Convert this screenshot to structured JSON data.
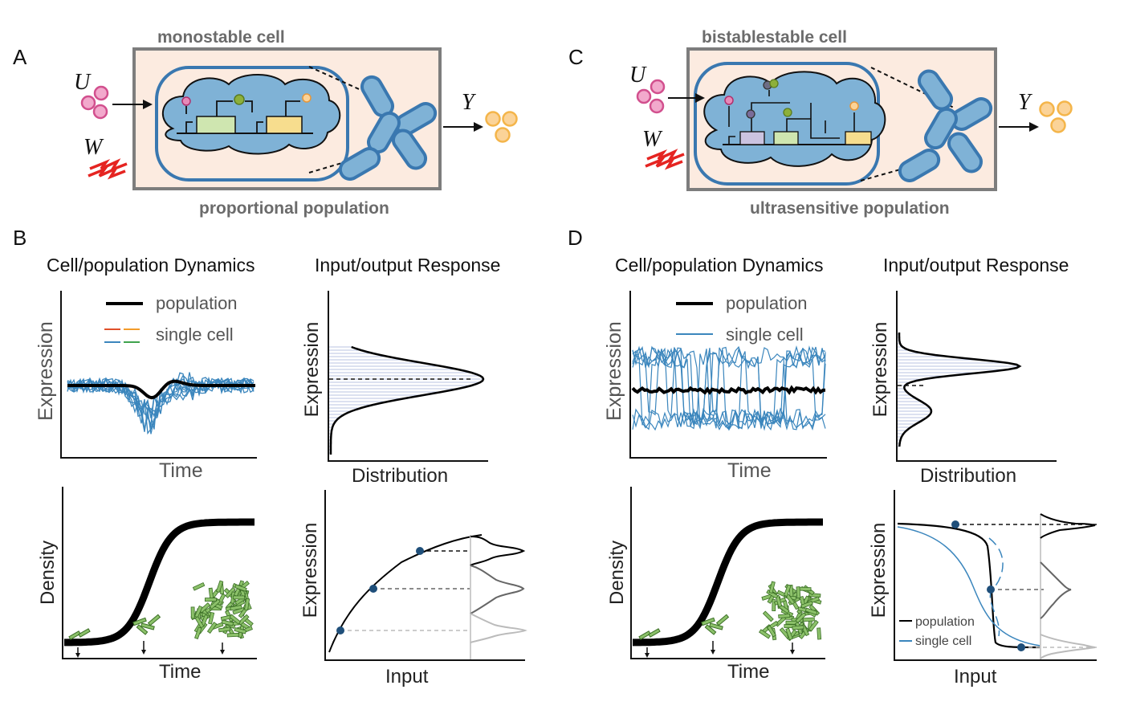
{
  "panels": {
    "a": "A",
    "b": "B",
    "c": "C",
    "d": "D"
  },
  "top_left": {
    "cell_title": "monostable cell",
    "population_title": "proportional population",
    "input_u": "U",
    "input_w": "W",
    "output_y": "Y"
  },
  "top_right": {
    "cell_title": "bistablestable cell",
    "population_title": "ultrasensitive population",
    "input_u": "U",
    "input_w": "W",
    "output_y": "Y"
  },
  "b_panel": {
    "dyn_heading": "Cell/population Dynamics",
    "io_heading": "Input/output Response",
    "dyn_legend_population": "population",
    "dyn_legend_single": "single cell",
    "dyn_ylabel": "Expression",
    "dyn_xlabel": "Time",
    "dist_ylabel": "Expression",
    "dist_xlabel": "Distribution",
    "density_ylabel": "Density",
    "density_xlabel": "Time",
    "io_ylabel": "Expression",
    "io_xlabel": "Input"
  },
  "d_panel": {
    "dyn_heading": "Cell/population Dynamics",
    "io_heading": "Input/output Response",
    "dyn_legend_population": "population",
    "dyn_legend_single": "single cell",
    "dyn_ylabel": "Expression",
    "dyn_xlabel": "Time",
    "dist_ylabel": "Expression",
    "dist_xlabel": "Distribution",
    "density_ylabel": "Density",
    "density_xlabel": "Time",
    "io_ylabel": "Expression",
    "io_xlabel": "Input",
    "io_legend_population": "population",
    "io_legend_single": "single cell"
  },
  "colors": {
    "cell_blue": "#3a78b0",
    "cytoplasm": "#7fb2d6",
    "box_fill": "#fcebe0",
    "trace_blue": "#3b86bd",
    "input_pink": "#d2508e",
    "output_yellow": "#f4b54a",
    "lightning_red": "#e52421",
    "colony_green": "#8cc16a"
  }
}
